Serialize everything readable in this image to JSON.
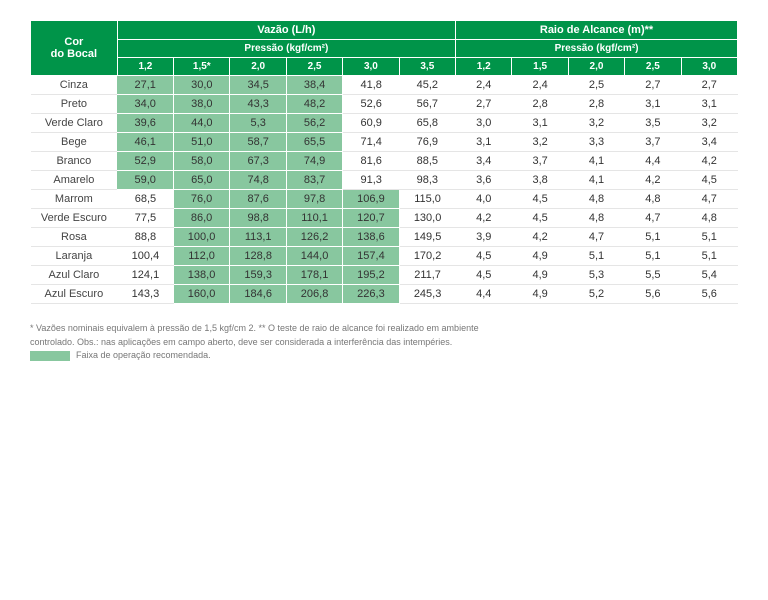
{
  "headers": {
    "corner": "Cor\ndo Bocal",
    "group1": "Vazão (L/h)",
    "group2": "Raio de Alcance (m)**",
    "sub": "Pressão (kgf/cm²)",
    "cols_v": [
      "1,2",
      "1,5*",
      "2,0",
      "2,5",
      "3,0",
      "3,5"
    ],
    "cols_r": [
      "1,2",
      "1,5",
      "2,0",
      "2,5",
      "3,0"
    ]
  },
  "rows": [
    {
      "label": "Cinza",
      "v": [
        "27,1",
        "30,0",
        "34,5",
        "38,4",
        "41,8",
        "45,2"
      ],
      "r": [
        "2,4",
        "2,4",
        "2,5",
        "2,7",
        "2,7"
      ],
      "rec": [
        0,
        1,
        2,
        3
      ]
    },
    {
      "label": "Preto",
      "v": [
        "34,0",
        "38,0",
        "43,3",
        "48,2",
        "52,6",
        "56,7"
      ],
      "r": [
        "2,7",
        "2,8",
        "2,8",
        "3,1",
        "3,1"
      ],
      "rec": [
        0,
        1,
        2,
        3
      ]
    },
    {
      "label": "Verde Claro",
      "v": [
        "39,6",
        "44,0",
        "5,3",
        "56,2",
        "60,9",
        "65,8"
      ],
      "r": [
        "3,0",
        "3,1",
        "3,2",
        "3,5",
        "3,2"
      ],
      "rec": [
        0,
        1,
        2,
        3
      ]
    },
    {
      "label": "Bege",
      "v": [
        "46,1",
        "51,0",
        "58,7",
        "65,5",
        "71,4",
        "76,9"
      ],
      "r": [
        "3,1",
        "3,2",
        "3,3",
        "3,7",
        "3,4"
      ],
      "rec": [
        0,
        1,
        2,
        3
      ]
    },
    {
      "label": "Branco",
      "v": [
        "52,9",
        "58,0",
        "67,3",
        "74,9",
        "81,6",
        "88,5"
      ],
      "r": [
        "3,4",
        "3,7",
        "4,1",
        "4,4",
        "4,2"
      ],
      "rec": [
        0,
        1,
        2,
        3
      ]
    },
    {
      "label": "Amarelo",
      "v": [
        "59,0",
        "65,0",
        "74,8",
        "83,7",
        "91,3",
        "98,3"
      ],
      "r": [
        "3,6",
        "3,8",
        "4,1",
        "4,2",
        "4,5"
      ],
      "rec": [
        0,
        1,
        2,
        3
      ]
    },
    {
      "label": "Marrom",
      "v": [
        "68,5",
        "76,0",
        "87,6",
        "97,8",
        "106,9",
        "115,0"
      ],
      "r": [
        "4,0",
        "4,5",
        "4,8",
        "4,8",
        "4,7"
      ],
      "rec": [
        1,
        2,
        3,
        4
      ]
    },
    {
      "label": "Verde Escuro",
      "v": [
        "77,5",
        "86,0",
        "98,8",
        "110,1",
        "120,7",
        "130,0"
      ],
      "r": [
        "4,2",
        "4,5",
        "4,8",
        "4,7",
        "4,8"
      ],
      "rec": [
        1,
        2,
        3,
        4
      ]
    },
    {
      "label": "Rosa",
      "v": [
        "88,8",
        "100,0",
        "113,1",
        "126,2",
        "138,6",
        "149,5"
      ],
      "r": [
        "3,9",
        "4,2",
        "4,7",
        "5,1",
        "5,1"
      ],
      "rec": [
        1,
        2,
        3,
        4
      ]
    },
    {
      "label": "Laranja",
      "v": [
        "100,4",
        "112,0",
        "128,8",
        "144,0",
        "157,4",
        "170,2"
      ],
      "r": [
        "4,5",
        "4,9",
        "5,1",
        "5,1",
        "5,1"
      ],
      "rec": [
        1,
        2,
        3,
        4
      ]
    },
    {
      "label": "Azul Claro",
      "v": [
        "124,1",
        "138,0",
        "159,3",
        "178,1",
        "195,2",
        "211,7"
      ],
      "r": [
        "4,5",
        "4,9",
        "5,3",
        "5,5",
        "5,4"
      ],
      "rec": [
        1,
        2,
        3,
        4
      ]
    },
    {
      "label": "Azul Escuro",
      "v": [
        "143,3",
        "160,0",
        "184,6",
        "206,8",
        "226,3",
        "245,3"
      ],
      "r": [
        "4,4",
        "4,9",
        "5,2",
        "5,6",
        "5,6"
      ],
      "rec": [
        1,
        2,
        3,
        4
      ]
    }
  ],
  "footnotes": {
    "line1": "* Vazões nominais equivalem à pressão de 1,5 kgf/cm 2. ** O teste de raio de alcance foi realizado em ambiente",
    "line2": "controlado. Obs.: nas aplicações em campo aberto, deve ser considerada a interferência das intempéries.",
    "legend": "Faixa de operação recomendada."
  },
  "colors": {
    "header_bg": "#009449",
    "rec_bg": "#88c79f"
  }
}
